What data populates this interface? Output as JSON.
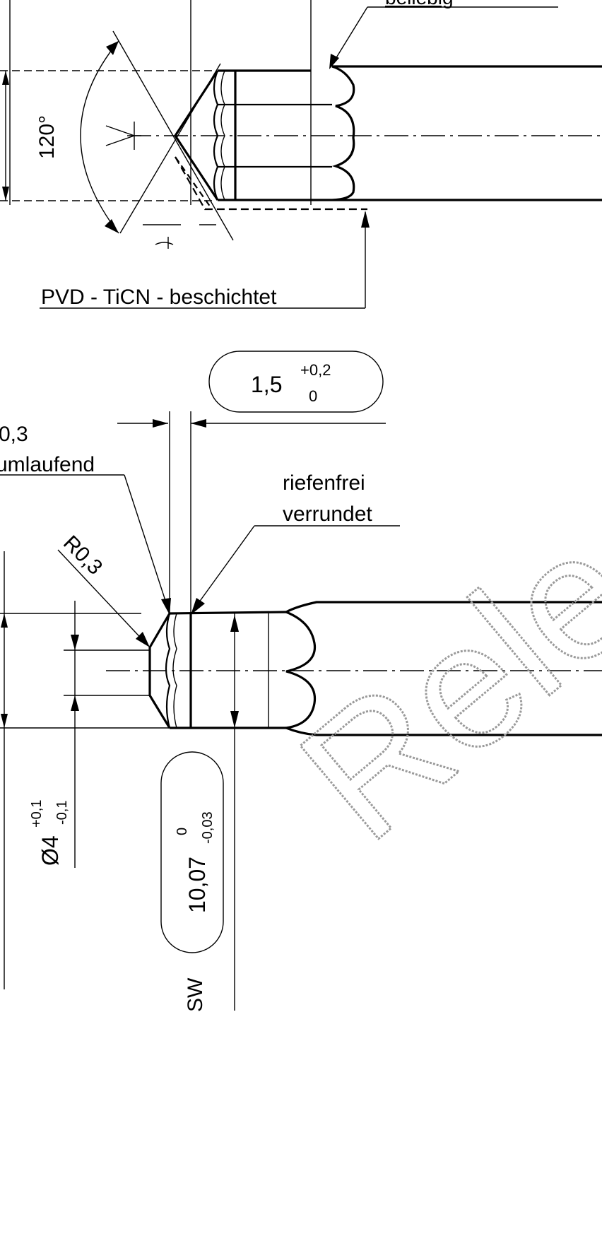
{
  "top_view": {
    "note_beliebig": "beliebig",
    "angle_label": "120°",
    "coating_note": "PVD - TiCN - beschichtet"
  },
  "bottom_view": {
    "width_dim_nominal": "1,5",
    "width_dim_upper": "+0,2",
    "width_dim_lower": "0",
    "chamfer_partial_value": "0,3",
    "chamfer_partial_text": "umlaufend",
    "riefenfrei_line1": "riefenfrei",
    "riefenfrei_line2": "verrundet",
    "radius_label": "R0,3",
    "diameter_nominal": "Ø4",
    "diameter_upper": "+0,1",
    "diameter_lower": "-0,1",
    "sw_nominal": "10,07",
    "sw_upper": "0",
    "sw_lower": "-0,03",
    "sw_label": "SW"
  },
  "watermark": "Relea",
  "colors": {
    "ink": "#000000",
    "watermark": "#9a9a9a",
    "paper": "#ffffff"
  }
}
